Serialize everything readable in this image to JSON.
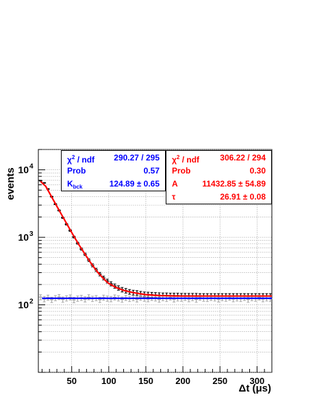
{
  "chart_data": {
    "type": "scatter",
    "title": "",
    "xlabel": "Δt (μs)",
    "ylabel": "events",
    "xlim": [
      5,
      320
    ],
    "ylim": [
      10,
      20000
    ],
    "yscale": "log",
    "grid": true,
    "x_ticks": [
      50,
      100,
      150,
      200,
      250,
      300
    ],
    "y_tick_labels": [
      {
        "value": 100,
        "base": "10",
        "exp": "2"
      },
      {
        "value": 1000,
        "base": "10",
        "exp": "3"
      },
      {
        "value": 10000,
        "base": "10",
        "exp": "4"
      }
    ],
    "series": [
      {
        "color": "#000000",
        "style": "points-with-error-bars",
        "x": [
          8,
          13,
          18,
          23,
          28,
          33,
          38,
          43,
          48,
          53,
          58,
          63,
          68,
          73,
          78,
          83,
          88,
          93,
          98,
          103,
          108,
          113,
          118,
          123,
          128,
          133,
          138,
          143,
          148,
          153,
          158,
          163,
          168,
          173,
          178,
          183,
          188,
          193,
          198,
          203,
          208,
          213,
          218,
          223,
          228,
          233,
          238,
          243,
          248,
          253,
          258,
          263,
          268,
          273,
          278,
          283,
          288,
          293,
          298,
          303,
          308,
          313,
          318
        ],
        "y": [
          6900,
          6400,
          5200,
          4000,
          3100,
          2500,
          1950,
          1560,
          1260,
          1010,
          820,
          670,
          560,
          460,
          385,
          330,
          285,
          250,
          225,
          205,
          190,
          178,
          168,
          162,
          156,
          152,
          150,
          146,
          143,
          142,
          141,
          140,
          139,
          138,
          138,
          137,
          137,
          137,
          136,
          136,
          136,
          136,
          136,
          135,
          135,
          135,
          135,
          135,
          135,
          135,
          135,
          135,
          135,
          135,
          135,
          135,
          135,
          135,
          135,
          135,
          135,
          135,
          135
        ]
      },
      {
        "color": "#aaaaaa",
        "style": "points-with-error-bars",
        "x": [
          8,
          13,
          18,
          23,
          28,
          33,
          38,
          43,
          48,
          53,
          58,
          63,
          68,
          73,
          78,
          83,
          88,
          93,
          98,
          103,
          108,
          113,
          118,
          123,
          128,
          133,
          138,
          143,
          148,
          153,
          158,
          163,
          168,
          173,
          178,
          183,
          188,
          193,
          198,
          203,
          208,
          213,
          218,
          223,
          228,
          233,
          238,
          243,
          248,
          253,
          258,
          263,
          268,
          273,
          278,
          283,
          288,
          293,
          298,
          303,
          308,
          313,
          318
        ],
        "y": [
          130,
          122,
          128,
          119,
          126,
          131,
          120,
          125,
          129,
          118,
          124,
          127,
          121,
          130,
          123,
          126,
          119,
          128,
          124,
          122,
          129,
          125,
          120,
          127,
          123,
          126,
          121,
          128,
          124,
          122,
          127,
          125,
          120,
          126,
          123,
          129,
          121,
          125,
          124,
          127,
          122,
          126,
          120,
          128,
          124,
          123,
          127,
          125,
          121,
          126,
          124,
          128,
          122,
          125,
          123,
          127,
          120,
          126,
          124,
          129,
          122,
          125,
          123
        ]
      },
      {
        "color": "#ff0000",
        "style": "line",
        "name": "",
        "x": [
          8,
          10,
          15,
          20,
          25,
          30,
          35,
          40,
          45,
          50,
          55,
          60,
          65,
          70,
          75,
          80,
          85,
          90,
          95,
          100,
          110,
          120,
          130,
          140,
          150,
          160,
          170,
          180,
          190,
          200,
          220,
          240,
          260,
          280,
          300,
          320
        ],
        "y": [
          6750,
          6400,
          5700,
          4550,
          3600,
          2880,
          2300,
          1840,
          1470,
          1180,
          950,
          770,
          630,
          520,
          430,
          360,
          305,
          265,
          232,
          207,
          180,
          164,
          154,
          147,
          142,
          139,
          137,
          136,
          135.5,
          135,
          135,
          135,
          135,
          135,
          135,
          135
        ]
      },
      {
        "color": "#0000ff",
        "style": "line",
        "x": [
          10,
          320
        ],
        "y": [
          124.89,
          124.89
        ]
      }
    ]
  },
  "fit_background": {
    "chi2_label": "χ",
    "chi2_exp": "2",
    "chi2_suffix": " / ndf",
    "chi2_value": "290.27 / 295",
    "prob_label": "Prob",
    "prob_value": "0.57",
    "k_label": "K",
    "k_sub": "bck",
    "k_value": "124.89 ± 0.65",
    "color": "#0000ff"
  },
  "fit_signal": {
    "chi2_label": "χ",
    "chi2_exp": "2",
    "chi2_suffix": " / ndf",
    "chi2_value": "306.22 / 294",
    "prob_label": "Prob",
    "prob_value": "0.30",
    "a_label": "A",
    "a_value": "11432.85 ± 54.89",
    "tau_label": "τ",
    "tau_value": "26.91 ± 0.08",
    "color": "#ff0000"
  }
}
